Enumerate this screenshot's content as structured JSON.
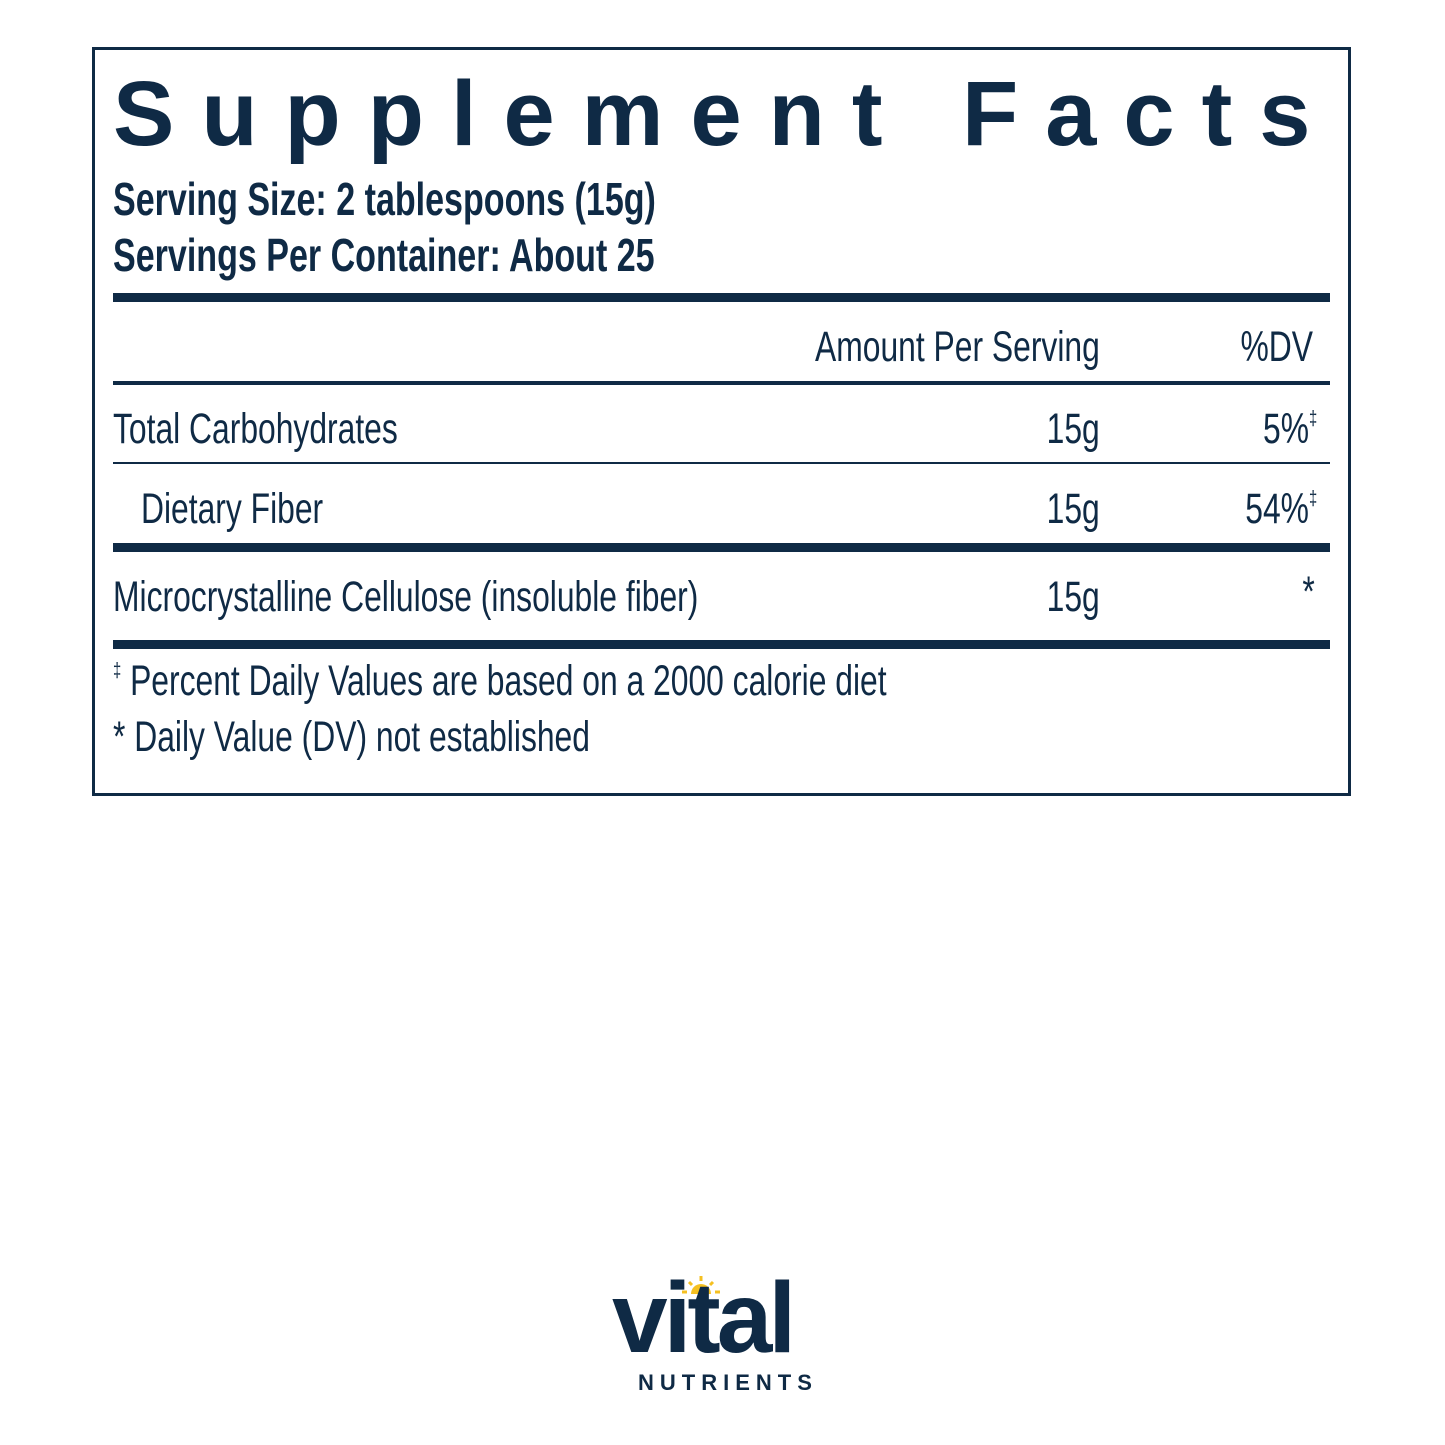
{
  "label": {
    "title": "Supplement Facts",
    "serving_size": "Serving Size: 2 tablespoons (15g)",
    "servings_per_container": "Servings Per Container: About 25",
    "header": {
      "amount": "Amount Per Serving",
      "dv": "%DV"
    },
    "rows": [
      {
        "name": "Total Carbohydrates",
        "amount": "15g",
        "dv": "5%",
        "dv_mark": "‡"
      },
      {
        "name": "Dietary Fiber",
        "amount": "15g",
        "dv": "54%",
        "dv_mark": "‡"
      },
      {
        "name": "Microcrystalline Cellulose (insoluble fiber)",
        "amount": "15g",
        "dv": "*",
        "dv_mark": ""
      }
    ],
    "footnotes": [
      {
        "mark": "‡",
        "text": "Percent Daily Values are based on a 2000 calorie diet"
      },
      {
        "mark": "",
        "text": "* Daily Value (DV) not established"
      }
    ]
  },
  "brand": {
    "name": "vital",
    "sub": "NUTRIENTS",
    "accent": "#f5c020",
    "color": "#0f2a45"
  }
}
